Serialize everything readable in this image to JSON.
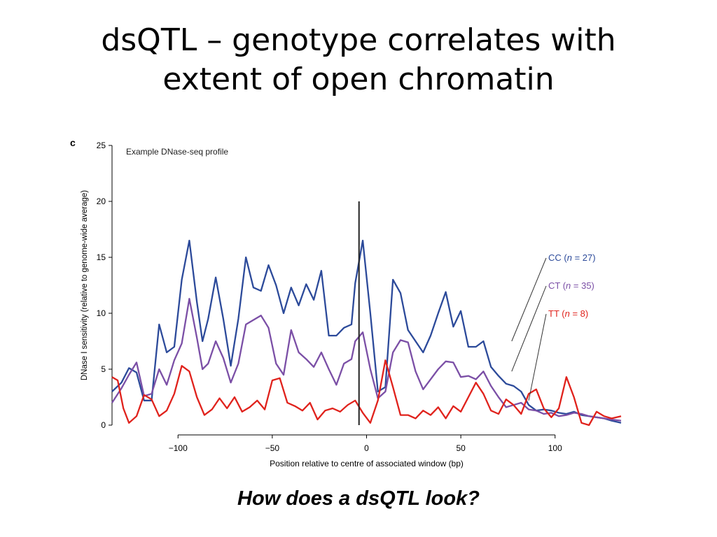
{
  "slide": {
    "title_line1": "dsQTL – genotype correlates with",
    "title_line2": "extent of open chromatin",
    "caption": "How does a dsQTL look?"
  },
  "chart_data": {
    "type": "line",
    "panel_label": "c",
    "subtitle": "Example DNase-seq profile",
    "xlabel": "Position relative to centre of associated window (bp)",
    "ylabel": "DNase I sensitivity (relative to genome-wide average)",
    "xlim": [
      -135,
      135
    ],
    "ylim": [
      0,
      25
    ],
    "xticks": [
      -100,
      -50,
      0,
      50,
      100
    ],
    "xtick_labels": [
      "−100",
      "−50",
      "0",
      "50",
      "100"
    ],
    "yticks": [
      0,
      5,
      10,
      15,
      20,
      25
    ],
    "ytick_labels": [
      "0",
      "5",
      "10",
      "15",
      "20",
      "25"
    ],
    "grid": false,
    "marker_line": {
      "x": -4,
      "y0": 0,
      "y1": 20
    },
    "series": [
      {
        "name": "CC",
        "legend_n": "27",
        "color": "#2c4a9a",
        "x": [
          -135,
          -130,
          -126,
          -122,
          -118,
          -114,
          -110,
          -106,
          -102,
          -98,
          -94,
          -90,
          -87,
          -84,
          -80,
          -76,
          -72,
          -68,
          -64,
          -60,
          -56,
          -52,
          -48,
          -44,
          -40,
          -36,
          -32,
          -28,
          -24,
          -20,
          -16,
          -12,
          -8,
          -6,
          -2,
          2,
          6,
          10,
          14,
          18,
          22,
          26,
          30,
          34,
          38,
          42,
          46,
          50,
          54,
          58,
          62,
          66,
          70,
          74,
          78,
          82,
          86,
          90,
          94,
          98,
          102,
          106,
          110,
          114,
          118,
          122,
          126,
          130,
          135
        ],
        "y": [
          3,
          3.8,
          5.1,
          4.7,
          2.2,
          2.2,
          9,
          6.5,
          7,
          13,
          16.5,
          11,
          7.5,
          9.5,
          13.2,
          9.5,
          5.3,
          9.5,
          15,
          12.3,
          12,
          14.3,
          12.5,
          10,
          12.3,
          10.7,
          12.6,
          11.2,
          13.8,
          8,
          8,
          8.7,
          9,
          12.7,
          16.5,
          10,
          3,
          3.4,
          13,
          11.8,
          8.5,
          7.5,
          6.5,
          8,
          10,
          11.9,
          8.8,
          10.2,
          7,
          7,
          7.5,
          5.2,
          4.4,
          3.7,
          3.5,
          3,
          1.8,
          1.3,
          1.4,
          1.3,
          1.1,
          1,
          1.2,
          0.9,
          0.8,
          0.7,
          0.6,
          0.4,
          0.2
        ]
      },
      {
        "name": "CT",
        "legend_n": "35",
        "color": "#7b4fa6",
        "x": [
          -135,
          -130,
          -126,
          -122,
          -118,
          -114,
          -110,
          -106,
          -102,
          -98,
          -94,
          -90,
          -87,
          -84,
          -80,
          -76,
          -72,
          -68,
          -64,
          -60,
          -56,
          -52,
          -48,
          -44,
          -40,
          -36,
          -32,
          -28,
          -24,
          -20,
          -16,
          -12,
          -8,
          -6,
          -2,
          2,
          6,
          10,
          14,
          18,
          22,
          26,
          30,
          34,
          38,
          42,
          46,
          50,
          54,
          58,
          62,
          66,
          70,
          74,
          78,
          82,
          86,
          90,
          94,
          98,
          102,
          106,
          110,
          114,
          118,
          122,
          126,
          130,
          135
        ],
        "y": [
          2,
          3.3,
          4.5,
          5.6,
          2.6,
          2.8,
          5,
          3.6,
          5.8,
          7.3,
          11.3,
          7.8,
          5,
          5.5,
          7.5,
          6,
          3.8,
          5.5,
          9,
          9.4,
          9.8,
          8.7,
          5.5,
          4.5,
          8.5,
          6.5,
          5.9,
          5.2,
          6.5,
          5,
          3.6,
          5.5,
          5.9,
          7.5,
          8.3,
          5,
          2.4,
          3,
          6.5,
          7.6,
          7.4,
          4.8,
          3.2,
          4.1,
          5,
          5.7,
          5.6,
          4.3,
          4.4,
          4.1,
          4.8,
          3.5,
          2.5,
          1.6,
          1.8,
          2,
          1.4,
          1.3,
          1,
          1.1,
          0.8,
          0.9,
          1.1,
          1,
          0.8,
          0.7,
          0.6,
          0.5,
          0.4
        ]
      },
      {
        "name": "TT",
        "legend_n": "8",
        "color": "#e0221c",
        "x": [
          -135,
          -132,
          -129,
          -126,
          -122,
          -118,
          -114,
          -110,
          -106,
          -102,
          -98,
          -94,
          -90,
          -86,
          -82,
          -78,
          -74,
          -70,
          -66,
          -62,
          -58,
          -54,
          -50,
          -46,
          -42,
          -38,
          -34,
          -30,
          -26,
          -22,
          -18,
          -14,
          -10,
          -6,
          -2,
          2,
          6,
          10,
          14,
          18,
          22,
          26,
          30,
          34,
          38,
          42,
          46,
          50,
          54,
          58,
          62,
          66,
          70,
          74,
          78,
          82,
          86,
          90,
          94,
          98,
          102,
          106,
          110,
          114,
          118,
          122,
          126,
          130,
          135
        ],
        "y": [
          4.3,
          4,
          1.5,
          0.2,
          0.8,
          2.7,
          2.3,
          0.8,
          1.3,
          2.8,
          5.3,
          4.8,
          2.5,
          0.9,
          1.4,
          2.4,
          1.5,
          2.5,
          1.2,
          1.6,
          2.2,
          1.4,
          4,
          4.2,
          2,
          1.7,
          1.3,
          2,
          0.5,
          1.3,
          1.5,
          1.2,
          1.8,
          2.2,
          1.1,
          0.2,
          2.2,
          5.8,
          3.4,
          0.9,
          0.9,
          0.6,
          1.3,
          0.9,
          1.6,
          0.6,
          1.7,
          1.2,
          2.5,
          3.8,
          2.8,
          1.3,
          1,
          2.3,
          1.8,
          1,
          2.8,
          3.2,
          1.5,
          0.7,
          1.5,
          4.3,
          2.5,
          0.2,
          0,
          1.2,
          0.8,
          0.6,
          0.8
        ]
      }
    ]
  }
}
